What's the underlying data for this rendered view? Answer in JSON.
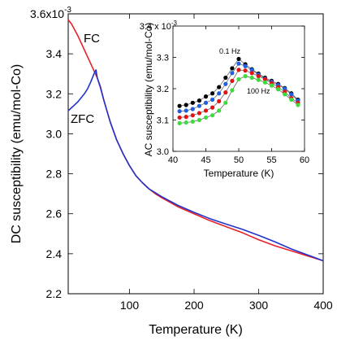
{
  "chart_data": [
    {
      "type": "line",
      "xlabel": "Temperature (K)",
      "ylabel": "DC susceptibility (emu/mol-Co)",
      "xlim": [
        5,
        400
      ],
      "ylim": [
        0.0022,
        0.0036
      ],
      "xticks": [
        100,
        200,
        300,
        400
      ],
      "xtick_labels": [
        "100",
        "200",
        "300",
        "400"
      ],
      "yticks": [
        0.0022,
        0.0024,
        0.0026,
        0.0028,
        0.003,
        0.0032,
        0.0034,
        0.0036
      ],
      "ytick_labels": [
        "2.2",
        "2.4",
        "2.6",
        "2.8",
        "3.0",
        "3.2",
        "3.4",
        "3.6x10"
      ],
      "y_exponent": "-3",
      "grid": false,
      "annotations": [
        "FC",
        "ZFC"
      ],
      "series": [
        {
          "name": "FC",
          "color": "#e8202a",
          "x": [
            5,
            10,
            15,
            20,
            25,
            30,
            35,
            40,
            45,
            50,
            55,
            60,
            65,
            70,
            80,
            90,
            100,
            110,
            120,
            130,
            140,
            150,
            175,
            200,
            225,
            250,
            275,
            300,
            325,
            350,
            375,
            400
          ],
          "y": [
            0.00357,
            0.00355,
            0.00352,
            0.00349,
            0.003455,
            0.00342,
            0.003385,
            0.00335,
            0.003315,
            0.00328,
            0.003235,
            0.00317,
            0.003115,
            0.00306,
            0.00297,
            0.0029,
            0.00284,
            0.00279,
            0.002755,
            0.002725,
            0.0027,
            0.00268,
            0.002635,
            0.0026,
            0.002565,
            0.002535,
            0.002505,
            0.00247,
            0.00244,
            0.002415,
            0.00239,
            0.002365
          ]
        },
        {
          "name": "ZFC",
          "color": "#2233cc",
          "x": [
            5,
            10,
            15,
            20,
            25,
            30,
            35,
            40,
            45,
            48,
            50,
            55,
            60,
            65,
            70,
            80,
            90,
            100,
            110,
            120,
            130,
            140,
            150,
            175,
            200,
            225,
            250,
            275,
            300,
            325,
            350,
            375,
            400
          ],
          "y": [
            0.003115,
            0.00313,
            0.003145,
            0.00316,
            0.00318,
            0.0032,
            0.003225,
            0.00326,
            0.0033,
            0.00332,
            0.00328,
            0.00323,
            0.00317,
            0.003115,
            0.00306,
            0.00297,
            0.0029,
            0.00284,
            0.00279,
            0.002755,
            0.002725,
            0.002705,
            0.002685,
            0.002642,
            0.002607,
            0.002575,
            0.002548,
            0.002522,
            0.002492,
            0.00246,
            0.002425,
            0.002395,
            0.002365
          ]
        }
      ]
    },
    {
      "type": "line",
      "xlabel": "Temperature (K)",
      "ylabel": "AC susceptibility (emu/mol-Co)",
      "xlim": [
        40,
        60
      ],
      "ylim": [
        0.003,
        0.0034
      ],
      "xticks": [
        40,
        45,
        50,
        55,
        60
      ],
      "xtick_labels": [
        "40",
        "45",
        "50",
        "55",
        "60"
      ],
      "yticks": [
        0.003,
        0.0031,
        0.0032,
        0.0033,
        0.0034
      ],
      "ytick_labels": [
        "3.0",
        "3.1",
        "3.2",
        "3.3",
        "3.4 x 10"
      ],
      "y_exponent": "-3",
      "grid": false,
      "annotations": [
        "0.1 Hz",
        "100 Hz"
      ],
      "series": [
        {
          "color": "#000000",
          "x": [
            41,
            42,
            43,
            44,
            45,
            46,
            47,
            48,
            49,
            50,
            51,
            52,
            53,
            54,
            55,
            56,
            57,
            58,
            59
          ],
          "y": [
            0.003145,
            0.003148,
            0.003155,
            0.003162,
            0.003175,
            0.003185,
            0.003205,
            0.003235,
            0.003265,
            0.003295,
            0.003278,
            0.003262,
            0.003248,
            0.003235,
            0.003225,
            0.003215,
            0.003202,
            0.003185,
            0.003165
          ]
        },
        {
          "color": "#1f5fe0",
          "x": [
            41,
            42,
            43,
            44,
            45,
            46,
            47,
            48,
            49,
            50,
            51,
            52,
            53,
            54,
            55,
            56,
            57,
            58,
            59
          ],
          "y": [
            0.003128,
            0.00313,
            0.003135,
            0.003145,
            0.003155,
            0.003165,
            0.003185,
            0.003215,
            0.00325,
            0.00328,
            0.003272,
            0.00326,
            0.003245,
            0.003232,
            0.003222,
            0.003212,
            0.0032,
            0.003182,
            0.003162
          ]
        },
        {
          "color": "#e11414",
          "x": [
            41,
            42,
            43,
            44,
            45,
            46,
            47,
            48,
            49,
            50,
            51,
            52,
            53,
            54,
            55,
            56,
            57,
            58,
            59
          ],
          "y": [
            0.003108,
            0.00311,
            0.003115,
            0.003122,
            0.00313,
            0.00314,
            0.00316,
            0.003188,
            0.003225,
            0.00326,
            0.003258,
            0.00325,
            0.00324,
            0.00323,
            0.003218,
            0.003205,
            0.00319,
            0.00317,
            0.003155
          ]
        },
        {
          "color": "#3ddc3d",
          "x": [
            41,
            42,
            43,
            44,
            45,
            46,
            47,
            48,
            49,
            50,
            51,
            52,
            53,
            54,
            55,
            56,
            57,
            58,
            59
          ],
          "y": [
            0.00309,
            0.003092,
            0.003095,
            0.0031,
            0.003108,
            0.003115,
            0.00313,
            0.003155,
            0.003195,
            0.00323,
            0.00324,
            0.003235,
            0.003228,
            0.00322,
            0.00321,
            0.003198,
            0.003182,
            0.003165,
            0.003148
          ]
        }
      ]
    }
  ]
}
